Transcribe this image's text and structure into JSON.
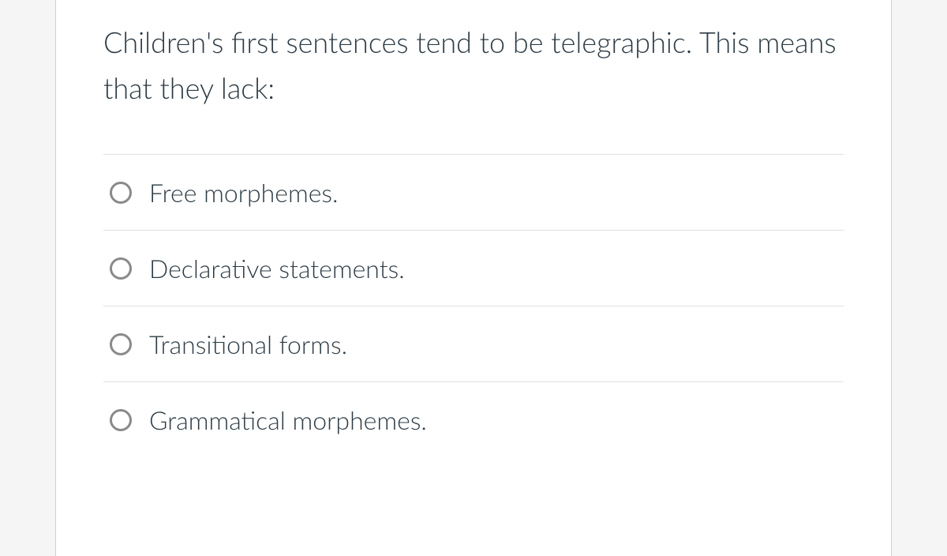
{
  "question": {
    "text": "Children's first sentences tend to be telegraphic. This means that they lack:",
    "text_color": "#2d3b45",
    "fontsize": 36
  },
  "options": [
    {
      "label": "Free morphemes.",
      "selected": false
    },
    {
      "label": "Declarative statements.",
      "selected": false
    },
    {
      "label": "Transitional forms.",
      "selected": false
    },
    {
      "label": "Grammatical morphemes.",
      "selected": false
    }
  ],
  "styling": {
    "background_color": "#ffffff",
    "page_background": "#f5f5f5",
    "divider_color": "#e0e0e0",
    "radio_border_color": "#8a8a8a",
    "option_fontsize": 32
  }
}
